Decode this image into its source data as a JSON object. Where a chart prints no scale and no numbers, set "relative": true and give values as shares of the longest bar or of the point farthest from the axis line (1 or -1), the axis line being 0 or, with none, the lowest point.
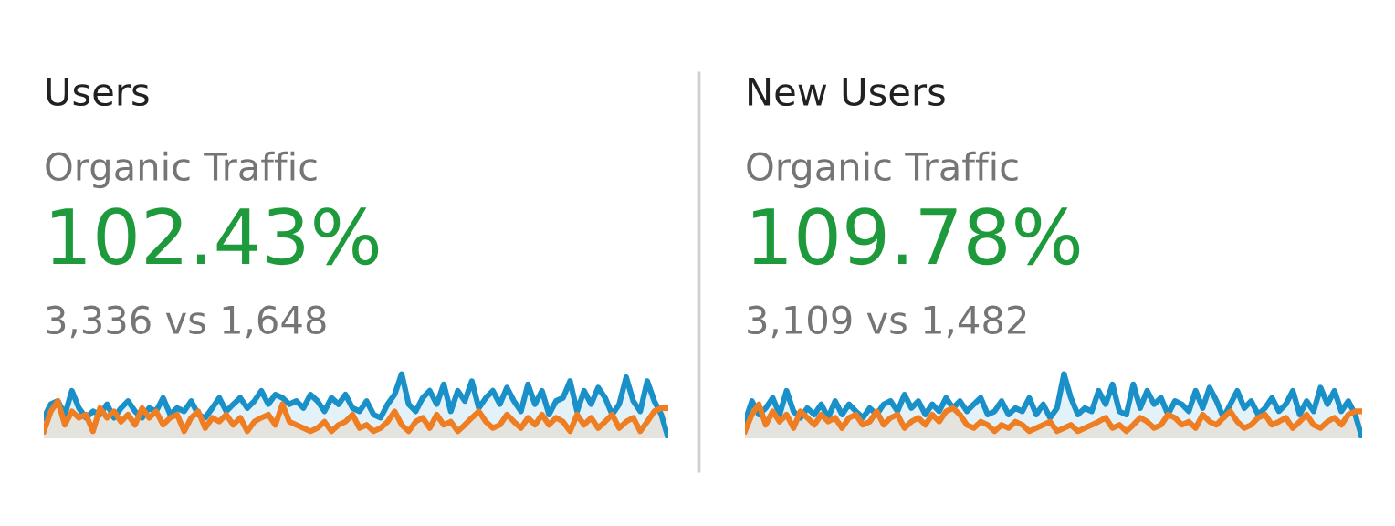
{
  "chart_data": [
    {
      "type": "area",
      "title": "Users",
      "subtitle": "Organic Traffic",
      "annotations": [
        "102.43%",
        "3,336 vs 1,648"
      ],
      "relative": true,
      "categories": [
        null,
        null,
        null,
        null,
        null,
        null,
        null,
        null,
        null,
        null,
        null,
        null,
        null,
        null,
        null,
        null,
        null,
        null,
        null,
        null,
        null,
        null,
        null,
        null,
        null,
        null,
        null,
        null,
        null,
        null,
        null,
        null,
        null,
        null,
        null,
        null,
        null,
        null,
        null,
        null,
        null,
        null,
        null,
        null,
        null,
        null,
        null,
        null,
        null,
        null,
        null,
        null,
        null,
        null,
        null,
        null,
        null,
        null,
        null,
        null,
        null,
        null,
        null,
        null,
        null,
        null,
        null,
        null,
        null,
        null,
        null,
        null,
        null,
        null,
        null,
        null,
        null,
        null,
        null,
        null,
        null,
        null,
        null,
        null,
        null,
        null,
        null,
        null,
        null,
        null
      ],
      "series": [
        {
          "color": "#1a90c9",
          "values": [
            0.32,
            0.53,
            0.58,
            0.37,
            0.74,
            0.47,
            0.32,
            0.42,
            0.37,
            0.53,
            0.32,
            0.47,
            0.58,
            0.42,
            0.32,
            0.47,
            0.42,
            0.63,
            0.37,
            0.47,
            0.42,
            0.58,
            0.37,
            0.32,
            0.47,
            0.63,
            0.42,
            0.53,
            0.63,
            0.47,
            0.58,
            0.74,
            0.53,
            0.68,
            0.63,
            0.53,
            0.58,
            0.47,
            0.68,
            0.58,
            0.42,
            0.63,
            0.53,
            0.68,
            0.47,
            0.42,
            0.58,
            0.37,
            0.32,
            0.53,
            0.68,
            1,
            0.53,
            0.42,
            0.63,
            0.74,
            0.53,
            0.84,
            0.42,
            0.74,
            0.58,
            0.89,
            0.47,
            0.63,
            0.74,
            0.53,
            0.79,
            0.58,
            0.42,
            0.84,
            0.53,
            0.74,
            0.37,
            0.58,
            0.63,
            0.89,
            0.42,
            0.74,
            0.53,
            0.79,
            0.63,
            0.37,
            0.53,
            0.95,
            0.58,
            0.42,
            0.89,
            0.58,
            0.37,
            0
          ]
        },
        {
          "color": "#ef7d22",
          "values": [
            0.11,
            0.42,
            0.58,
            0.21,
            0.42,
            0.32,
            0.37,
            0.11,
            0.47,
            0.32,
            0.42,
            0.26,
            0.37,
            0.21,
            0.47,
            0.32,
            0.42,
            0.21,
            0.32,
            0.37,
            0.11,
            0.32,
            0.42,
            0.16,
            0.32,
            0.26,
            0.37,
            0.21,
            0.32,
            0.11,
            0.26,
            0.32,
            0.37,
            0.21,
            0.53,
            0.26,
            0.21,
            0.16,
            0.11,
            0.16,
            0.26,
            0.11,
            0.21,
            0.26,
            0.37,
            0.16,
            0.21,
            0.11,
            0.16,
            0.26,
            0.42,
            0.21,
            0.11,
            0.26,
            0.32,
            0.16,
            0.37,
            0.21,
            0.26,
            0.11,
            0.21,
            0.32,
            0.42,
            0.26,
            0.16,
            0.21,
            0.37,
            0.26,
            0.16,
            0.32,
            0.21,
            0.37,
            0.21,
            0.32,
            0.26,
            0.11,
            0.37,
            0.21,
            0.32,
            0.16,
            0.26,
            0.37,
            0.16,
            0.26,
            0.32,
            0.11,
            0.26,
            0.42,
            0.47,
            0.47
          ]
        }
      ]
    },
    {
      "type": "area",
      "title": "New Users",
      "subtitle": "Organic Traffic",
      "annotations": [
        "109.78%",
        "3,109 vs 1,482"
      ],
      "relative": true,
      "categories": [
        null,
        null,
        null,
        null,
        null,
        null,
        null,
        null,
        null,
        null,
        null,
        null,
        null,
        null,
        null,
        null,
        null,
        null,
        null,
        null,
        null,
        null,
        null,
        null,
        null,
        null,
        null,
        null,
        null,
        null,
        null,
        null,
        null,
        null,
        null,
        null,
        null,
        null,
        null,
        null,
        null,
        null,
        null,
        null,
        null,
        null,
        null,
        null,
        null,
        null,
        null,
        null,
        null,
        null,
        null,
        null,
        null,
        null,
        null,
        null,
        null,
        null,
        null,
        null,
        null,
        null,
        null,
        null,
        null,
        null,
        null,
        null,
        null,
        null,
        null,
        null,
        null,
        null,
        null,
        null,
        null,
        null,
        null,
        null,
        null,
        null,
        null,
        null,
        null,
        null
      ],
      "series": [
        {
          "color": "#1a90c9",
          "values": [
            0.26,
            0.58,
            0.37,
            0.47,
            0.63,
            0.37,
            0.74,
            0.42,
            0.32,
            0.47,
            0.37,
            0.53,
            0.32,
            0.58,
            0.37,
            0.53,
            0.42,
            0.32,
            0.47,
            0.37,
            0.53,
            0.58,
            0.42,
            0.68,
            0.47,
            0.58,
            0.37,
            0.53,
            0.42,
            0.63,
            0.47,
            0.58,
            0.42,
            0.53,
            0.63,
            0.37,
            0.42,
            0.58,
            0.37,
            0.47,
            0.42,
            0.63,
            0.37,
            0.53,
            0.32,
            0.47,
            1,
            0.63,
            0.37,
            0.47,
            0.42,
            0.74,
            0.53,
            0.84,
            0.42,
            0.37,
            0.84,
            0.47,
            0.74,
            0.53,
            0.63,
            0.37,
            0.58,
            0.53,
            0.42,
            0.74,
            0.47,
            0.79,
            0.58,
            0.32,
            0.53,
            0.74,
            0.47,
            0.58,
            0.37,
            0.47,
            0.63,
            0.42,
            0.53,
            0.74,
            0.37,
            0.58,
            0.42,
            0.79,
            0.53,
            0.74,
            0.42,
            0.58,
            0.37,
            0
          ]
        },
        {
          "color": "#ef7d22",
          "values": [
            0.11,
            0.37,
            0.53,
            0.21,
            0.42,
            0.26,
            0.37,
            0.16,
            0.42,
            0.32,
            0.21,
            0.37,
            0.26,
            0.32,
            0.16,
            0.32,
            0.37,
            0.21,
            0.26,
            0.42,
            0.21,
            0.32,
            0.37,
            0.16,
            0.26,
            0.32,
            0.21,
            0.37,
            0.26,
            0.42,
            0.47,
            0.37,
            0.21,
            0.16,
            0.26,
            0.21,
            0.11,
            0.21,
            0.16,
            0.26,
            0.21,
            0.11,
            0.16,
            0.21,
            0.26,
            0.11,
            0.16,
            0.21,
            0.11,
            0.16,
            0.21,
            0.26,
            0.32,
            0.16,
            0.21,
            0.11,
            0.21,
            0.32,
            0.26,
            0.16,
            0.21,
            0.37,
            0.32,
            0.21,
            0.26,
            0.16,
            0.37,
            0.26,
            0.21,
            0.32,
            0.42,
            0.26,
            0.16,
            0.21,
            0.32,
            0.37,
            0.21,
            0.26,
            0.32,
            0.16,
            0.26,
            0.37,
            0.21,
            0.16,
            0.26,
            0.32,
            0.21,
            0.37,
            0.42,
            0.42
          ]
        }
      ]
    }
  ]
}
